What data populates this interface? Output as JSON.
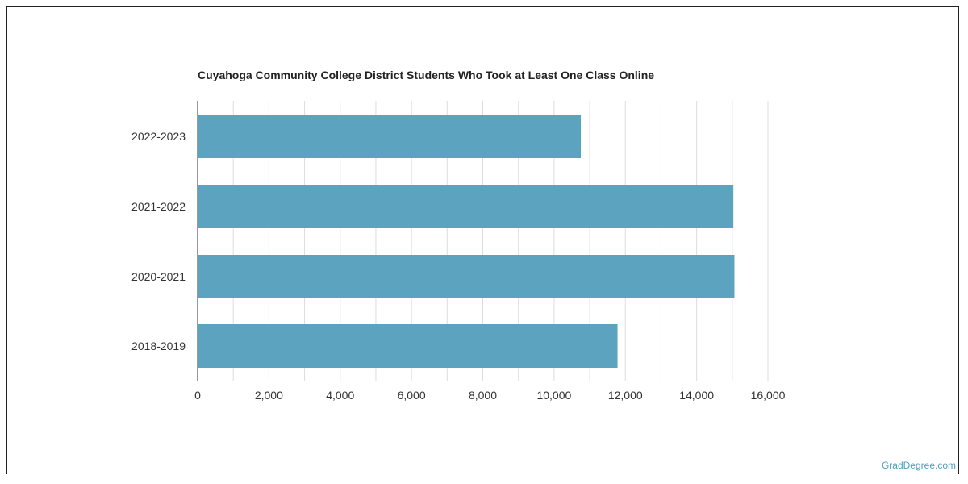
{
  "chart_data": {
    "type": "bar",
    "orientation": "horizontal",
    "title": "Cuyahoga Community College District Students Who Took at Least One Class Online",
    "categories": [
      "2022-2023",
      "2021-2022",
      "2020-2021",
      "2018-2019"
    ],
    "values": [
      10750,
      15030,
      15060,
      11780
    ],
    "xlim": [
      0,
      16000
    ],
    "xticks": [
      0,
      2000,
      4000,
      6000,
      8000,
      10000,
      12000,
      14000,
      16000
    ],
    "xtick_labels": [
      "0",
      "2,000",
      "4,000",
      "6,000",
      "8,000",
      "10,000",
      "12,000",
      "14,000",
      "16,000"
    ],
    "xlabel": "",
    "ylabel": "",
    "grid": true,
    "bar_color": "#5ba3bf",
    "grid_color": "#dddddd"
  },
  "credit": {
    "label": "GradDegree.com",
    "color": "#4f9fc0"
  }
}
